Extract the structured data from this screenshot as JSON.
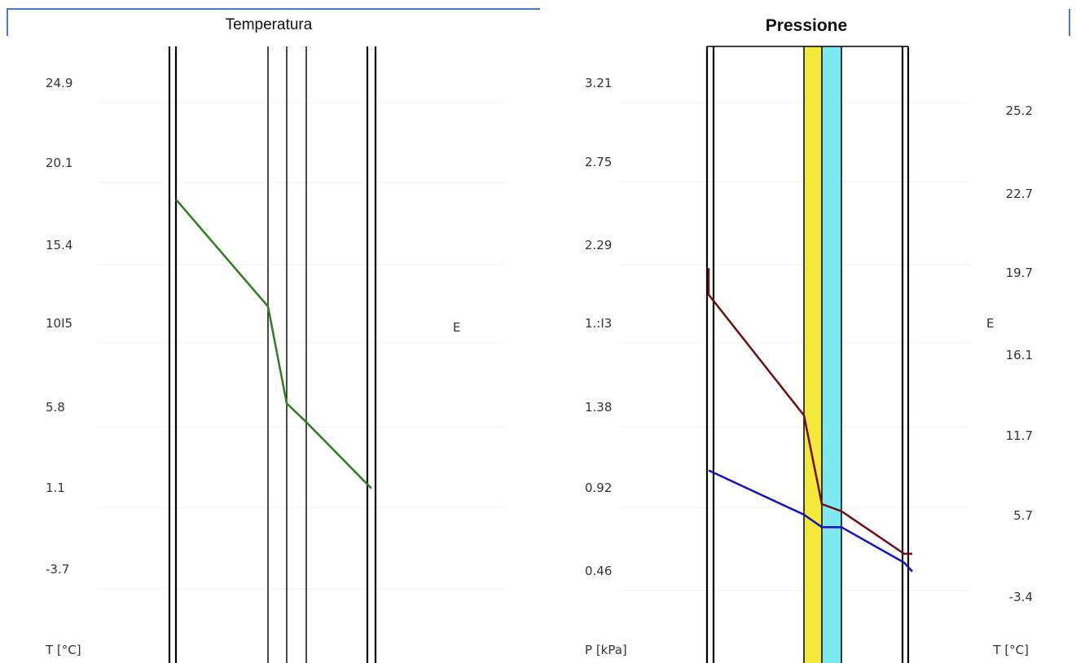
{
  "chart_data": [
    {
      "type": "line",
      "title": "Temperatura",
      "ylabel": "T [°C]",
      "y_ticks": [
        "24.9",
        "20.1",
        "15.4",
        "10I5",
        "5.8",
        "1.1",
        "-3.7"
      ],
      "y_tick_values": [
        24.9,
        20.1,
        15.4,
        10.5,
        5.8,
        1.1,
        -3.7
      ],
      "side_label": "E",
      "layer_boundaries": [
        "outer-surface",
        "b1",
        "b2",
        "b3",
        "inner-surface"
      ],
      "series": [
        {
          "color": "#2e7d22",
          "points": [
            {
              "boundary": "outer-surface",
              "value": 18.3
            },
            {
              "boundary": "b1",
              "value": 12.0
            },
            {
              "boundary": "b2",
              "value": 6.3
            },
            {
              "boundary": "b3",
              "value": 5.2
            },
            {
              "boundary": "inner-surface",
              "value": 1.3
            }
          ]
        }
      ],
      "grid": true
    },
    {
      "type": "line",
      "title": "Pressione",
      "ylabel_left": "P [kPa]",
      "ylabel_right": "T [°C]",
      "y_ticks_left": [
        "3.21",
        "2.75",
        "2.29",
        "1.:I3",
        "1.38",
        "0.92",
        "0.46"
      ],
      "y_tick_values_left": [
        3.21,
        2.75,
        2.29,
        1.83,
        1.38,
        0.92,
        0.46
      ],
      "y_ticks_right": [
        "25.2",
        "22.7",
        "19.7",
        "16.1",
        "11.7",
        "5.7",
        "-3.4"
      ],
      "side_label": "E",
      "layers": [
        {
          "name": "layer-yellow",
          "color": "#f2e93a"
        },
        {
          "name": "layer-cyan",
          "color": "#7fe9f2"
        }
      ],
      "series": [
        {
          "name": "",
          "color": "#6b1010",
          "points": [
            {
              "boundary": "outer-surface-top",
              "value": 2.19
            },
            {
              "boundary": "outer-surface",
              "value": 2.04
            },
            {
              "boundary": "yellow-start",
              "value": 1.36
            },
            {
              "boundary": "cyan-start",
              "value": 0.86
            },
            {
              "boundary": "cyan-end",
              "value": 0.82
            },
            {
              "boundary": "inner-surface",
              "value": 0.58
            },
            {
              "boundary": "inner-surface-end",
              "value": 0.58
            }
          ]
        },
        {
          "name": "",
          "color": "#1414b4",
          "points": [
            {
              "boundary": "outer-surface",
              "value": 1.05
            },
            {
              "boundary": "yellow-start",
              "value": 0.8
            },
            {
              "boundary": "cyan-start",
              "value": 0.73
            },
            {
              "boundary": "cyan-end",
              "value": 0.73
            },
            {
              "boundary": "inner-surface",
              "value": 0.53
            },
            {
              "boundary": "inner-surface-end",
              "value": 0.48
            }
          ]
        }
      ],
      "grid": true
    }
  ]
}
